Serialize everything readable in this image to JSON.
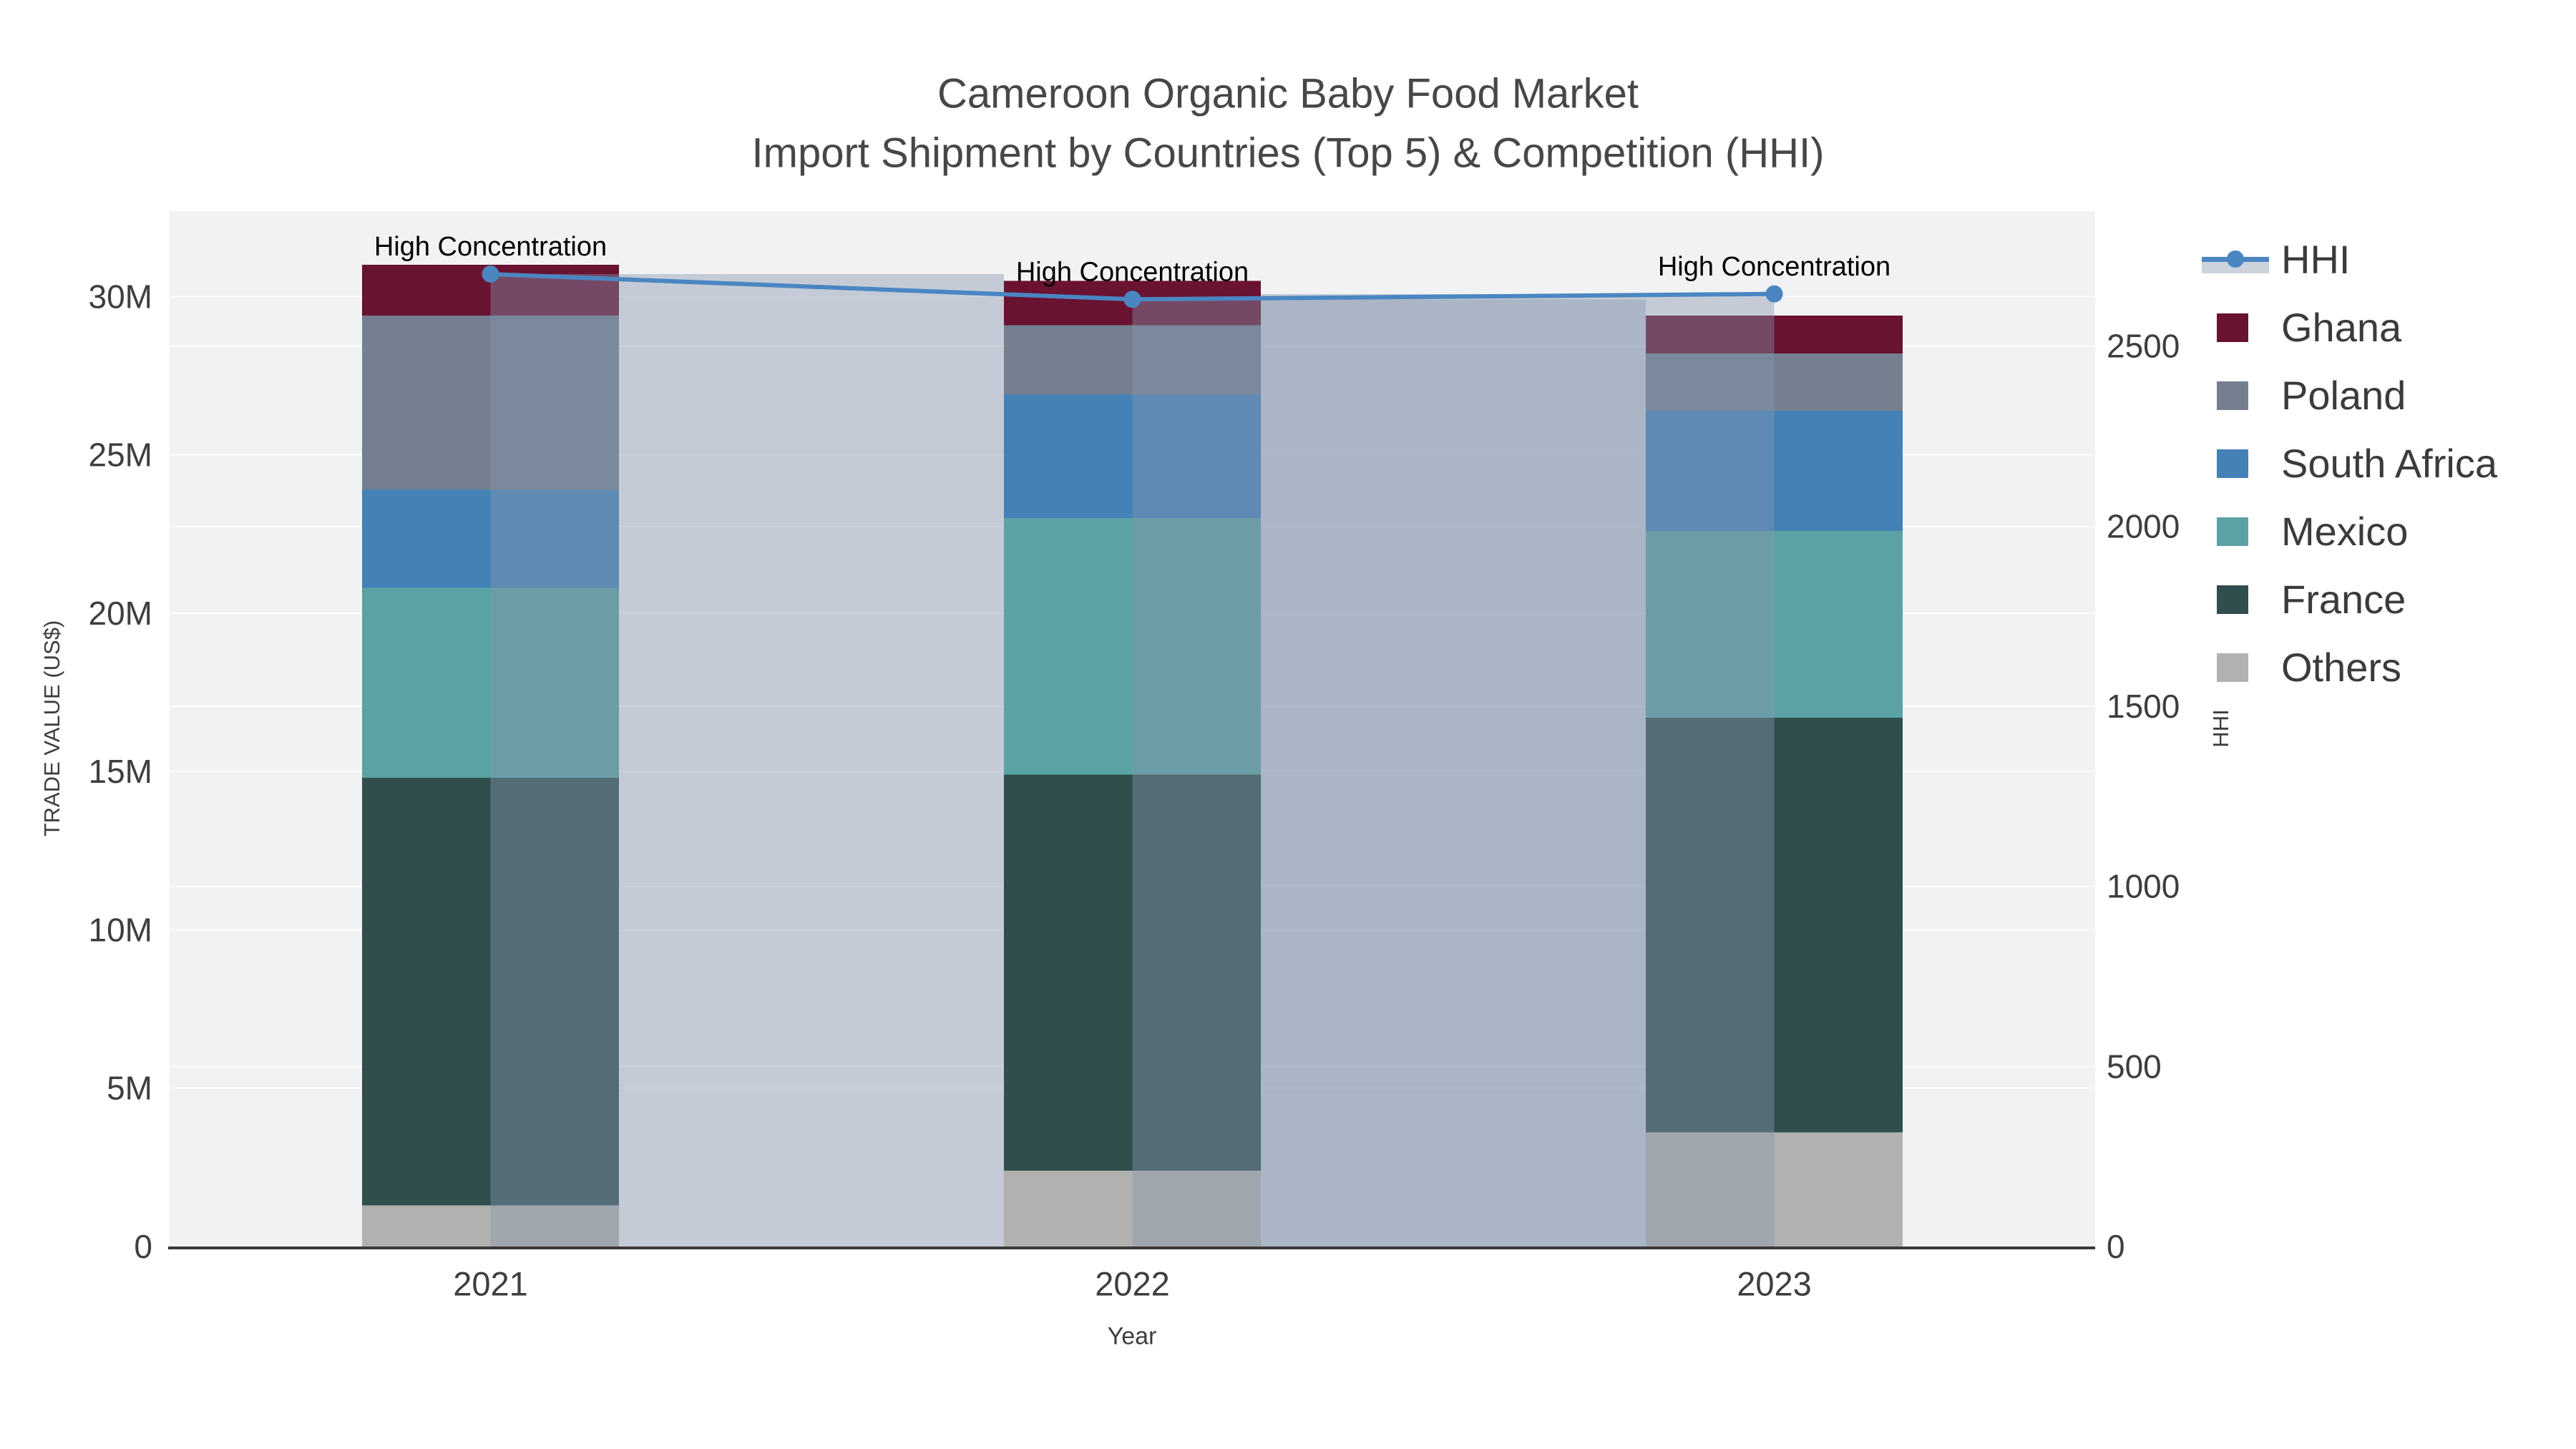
{
  "chart_data": {
    "type": "stacked-bar+line",
    "title": "Cameroon Organic Baby Food Market",
    "subtitle": "Import Shipment by Countries (Top 5) & Competition (HHI)",
    "xlabel": "Year",
    "ylabel_left": "TRADE VALUE (US$)",
    "ylabel_right": "HHI",
    "unit": "million US$",
    "categories": [
      "2021",
      "2022",
      "2023"
    ],
    "series": [
      {
        "name": "Others",
        "color": "#b1b1af",
        "values": [
          1.3,
          2.4,
          3.6
        ]
      },
      {
        "name": "France",
        "color": "#2f4e4c",
        "values": [
          13.5,
          12.5,
          13.1
        ]
      },
      {
        "name": "Mexico",
        "color": "#5aa2a3",
        "values": [
          6.0,
          8.1,
          5.9
        ]
      },
      {
        "name": "South Africa",
        "color": "#4381b7",
        "values": [
          3.1,
          3.9,
          3.8
        ]
      },
      {
        "name": "Poland",
        "color": "#74808f",
        "values": [
          5.5,
          2.2,
          1.8
        ]
      },
      {
        "name": "Ghana",
        "color": "#6a1232",
        "values": [
          1.6,
          1.4,
          1.2
        ]
      }
    ],
    "totals": [
      31.0,
      30.5,
      29.4
    ],
    "hhi": {
      "name": "HHI",
      "values": [
        2700,
        2630,
        2645
      ],
      "line_color": "#4a86c1",
      "bar_fill": "rgba(134,150,173,0.42)",
      "bar_side": [
        "right",
        "right",
        "left"
      ]
    },
    "annotations": [
      {
        "year": "2021",
        "text": "High Concentration"
      },
      {
        "year": "2022",
        "text": "High Concentration"
      },
      {
        "year": "2023",
        "text": "High Concentration"
      }
    ],
    "axis_left": {
      "ticks": [
        "0",
        "5M",
        "10M",
        "15M",
        "20M",
        "25M",
        "30M"
      ],
      "tick_values": [
        0,
        5,
        10,
        15,
        20,
        25,
        30
      ],
      "range": [
        0,
        32.7
      ]
    },
    "axis_right": {
      "ticks": [
        "0",
        "500",
        "1000",
        "1500",
        "2000",
        "2500"
      ],
      "tick_values": [
        0,
        500,
        1000,
        1500,
        2000,
        2500
      ],
      "range": [
        0,
        2875
      ]
    },
    "legend": [
      {
        "label": "HHI",
        "glyph": "line"
      },
      {
        "label": "Ghana",
        "glyph": "swatch",
        "color": "#6a1232"
      },
      {
        "label": "Poland",
        "glyph": "swatch",
        "color": "#74808f"
      },
      {
        "label": "South Africa",
        "glyph": "swatch",
        "color": "#4381b7"
      },
      {
        "label": "Mexico",
        "glyph": "swatch",
        "color": "#5aa2a3"
      },
      {
        "label": "France",
        "glyph": "swatch",
        "color": "#2f4e4c"
      },
      {
        "label": "Others",
        "glyph": "swatch",
        "color": "#b1b1af"
      }
    ],
    "plot_bg": "#f1f2f3",
    "grid_color": "rgba(255,255,255,0.9)",
    "axis_line_color": "#3a3a3a",
    "grid": true,
    "legend_position": "right"
  }
}
